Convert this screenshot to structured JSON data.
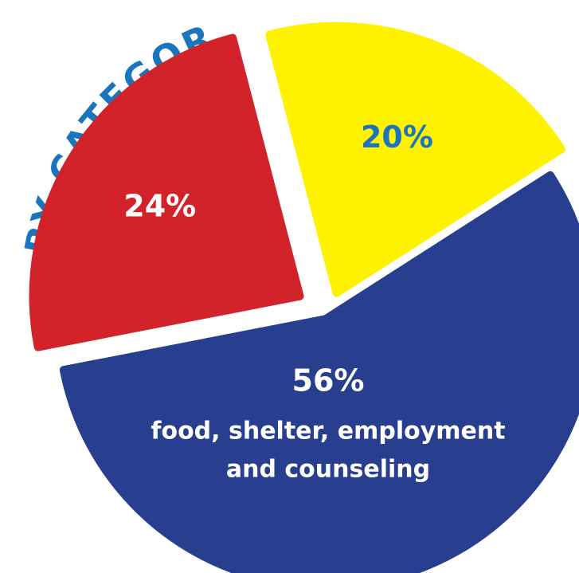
{
  "chart_data": {
    "type": "pie",
    "title": "BY CATEGORY",
    "slices": [
      {
        "label": "24%",
        "value": 24,
        "color": "#d2232a",
        "label_color": "#ffffff",
        "description": []
      },
      {
        "label": "20%",
        "value": 20,
        "color": "#fff200",
        "label_color": "#1b75bc",
        "description": []
      },
      {
        "label": "56%",
        "value": 56,
        "color": "#283f8f",
        "label_color": "#ffffff",
        "description": [
          "food, shelter, employment",
          "and counseling"
        ]
      }
    ]
  },
  "colors": {
    "title": "#1b75bc",
    "background": "#ffffff"
  }
}
